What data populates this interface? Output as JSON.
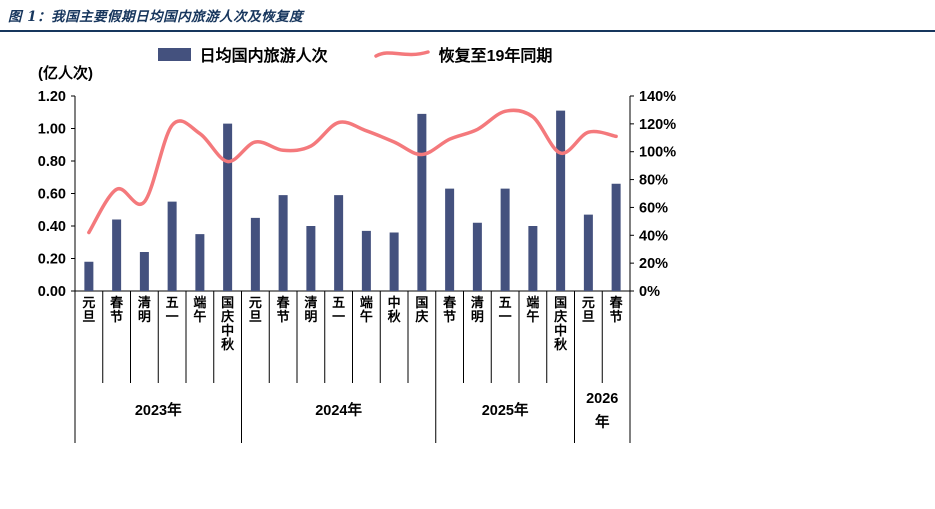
{
  "figure": {
    "title": "图 1：我国主要假期日均国内旅游人次及恢复度"
  },
  "legend": {
    "bar_label": "日均国内旅游人次",
    "line_label": "恢复至19年同期"
  },
  "chart_data": {
    "type": "bar+line",
    "categories": [
      "元旦",
      "春节",
      "清明",
      "五一",
      "端午",
      "国庆中秋",
      "元旦",
      "春节",
      "清明",
      "五一",
      "端午",
      "中秋",
      "国庆",
      "春节",
      "清明",
      "五一",
      "端午",
      "国庆中秋",
      "元旦",
      "春节"
    ],
    "year_groups": [
      {
        "label": "2023年",
        "count": 6
      },
      {
        "label": "2024年",
        "count": 7
      },
      {
        "label": "2025年",
        "count": 5
      },
      {
        "label": "2026年",
        "count": 2
      }
    ],
    "series": [
      {
        "name": "日均国内旅游人次",
        "type": "bar",
        "axis": "left",
        "values": [
          0.18,
          0.44,
          0.24,
          0.55,
          0.35,
          1.03,
          0.45,
          0.59,
          0.4,
          0.59,
          0.37,
          0.36,
          1.09,
          0.63,
          0.42,
          0.63,
          0.4,
          1.11,
          0.47,
          0.66
        ]
      },
      {
        "name": "恢复至19年同期",
        "type": "line",
        "axis": "right",
        "values": [
          42,
          73,
          64,
          119,
          113,
          93,
          107,
          101,
          104,
          121,
          115,
          107,
          98,
          109,
          116,
          129,
          125,
          99,
          114,
          111
        ]
      }
    ],
    "left_axis": {
      "title": "(亿人次)",
      "min": 0,
      "max": 1.2,
      "step": 0.2,
      "tick_labels": [
        "1.20",
        "1.00",
        "0.80",
        "0.60",
        "0.40",
        "0.20",
        "0.00"
      ]
    },
    "right_axis": {
      "min": 0,
      "max": 140,
      "step": 20,
      "tick_labels": [
        "140%",
        "120%",
        "100%",
        "80%",
        "60%",
        "40%",
        "20%",
        "0%"
      ]
    },
    "grid": false,
    "legend_position": "top",
    "colors": {
      "bar": "#44517E",
      "line": "#F4797C",
      "title": "#17365D"
    }
  }
}
